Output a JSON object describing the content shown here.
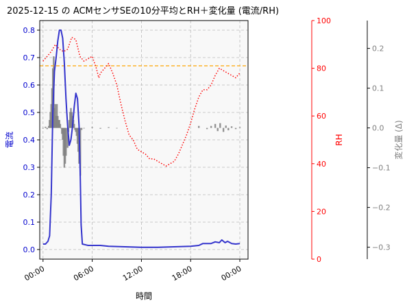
{
  "chart_data": {
    "type": "line",
    "title": "2025-12-15 の ACMセンサSEの10分平均とRH＋変化量 (電流/RH)",
    "xlabel": "時間",
    "x_ticks": [
      "00:00",
      "06:00",
      "12:00",
      "18:00",
      "00:00"
    ],
    "x_range_hours": [
      -0.4,
      25
    ],
    "grid": true,
    "threshold_line": {
      "value": 0.67,
      "axis": "left",
      "color": "#ffa500"
    },
    "axes": {
      "left": {
        "label": "電流",
        "ylim": [
          -0.035,
          0.835
        ],
        "ticks": [
          0.0,
          0.1,
          0.2,
          0.3,
          0.4,
          0.5,
          0.6,
          0.7,
          0.8
        ],
        "color": "#0000cd"
      },
      "rh": {
        "label": "RH",
        "ylim": [
          0,
          100
        ],
        "ticks": [
          0,
          20,
          40,
          60,
          80,
          100
        ],
        "color": "#ff0000"
      },
      "delta": {
        "label": "変化量 (Δ)",
        "ylim": [
          -0.33,
          0.27
        ],
        "ticks": [
          -0.3,
          -0.2,
          -0.1,
          0.0,
          0.1,
          0.2
        ],
        "color": "#808080"
      }
    },
    "series": [
      {
        "axis": "left",
        "style": "solid",
        "color": "#3333cc",
        "points": [
          [
            0.0,
            0.02
          ],
          [
            0.3,
            0.02
          ],
          [
            0.6,
            0.03
          ],
          [
            0.8,
            0.05
          ],
          [
            1.0,
            0.2
          ],
          [
            1.2,
            0.5
          ],
          [
            1.4,
            0.65
          ],
          [
            1.6,
            0.7
          ],
          [
            1.8,
            0.76
          ],
          [
            2.0,
            0.8
          ],
          [
            2.2,
            0.8
          ],
          [
            2.4,
            0.77
          ],
          [
            2.6,
            0.68
          ],
          [
            2.8,
            0.55
          ],
          [
            3.0,
            0.45
          ],
          [
            3.2,
            0.38
          ],
          [
            3.4,
            0.4
          ],
          [
            3.6,
            0.45
          ],
          [
            3.8,
            0.52
          ],
          [
            4.0,
            0.57
          ],
          [
            4.2,
            0.55
          ],
          [
            4.4,
            0.45
          ],
          [
            4.55,
            0.26
          ],
          [
            4.65,
            0.09
          ],
          [
            4.8,
            0.02
          ],
          [
            5.5,
            0.015
          ],
          [
            7.0,
            0.015
          ],
          [
            8.0,
            0.012
          ],
          [
            10.0,
            0.01
          ],
          [
            12.0,
            0.008
          ],
          [
            14.0,
            0.008
          ],
          [
            16.0,
            0.01
          ],
          [
            18.0,
            0.012
          ],
          [
            19.0,
            0.015
          ],
          [
            19.5,
            0.022
          ],
          [
            20.5,
            0.022
          ],
          [
            21.0,
            0.028
          ],
          [
            21.5,
            0.025
          ],
          [
            21.8,
            0.035
          ],
          [
            22.2,
            0.025
          ],
          [
            22.5,
            0.03
          ],
          [
            23.0,
            0.022
          ],
          [
            23.5,
            0.02
          ],
          [
            24.0,
            0.022
          ]
        ]
      },
      {
        "axis": "rh",
        "style": "dotted",
        "color": "#ff0000",
        "points": [
          [
            0.0,
            83
          ],
          [
            0.5,
            85
          ],
          [
            1.0,
            87
          ],
          [
            1.5,
            90
          ],
          [
            2.0,
            88
          ],
          [
            2.5,
            87
          ],
          [
            3.0,
            88
          ],
          [
            3.5,
            93
          ],
          [
            4.0,
            92
          ],
          [
            4.5,
            85
          ],
          [
            5.0,
            83
          ],
          [
            5.5,
            84
          ],
          [
            6.0,
            85
          ],
          [
            6.5,
            80
          ],
          [
            6.8,
            76
          ],
          [
            7.0,
            78
          ],
          [
            7.5,
            80
          ],
          [
            8.0,
            82
          ],
          [
            8.5,
            78
          ],
          [
            9.0,
            73
          ],
          [
            9.5,
            65
          ],
          [
            10.0,
            58
          ],
          [
            10.5,
            52
          ],
          [
            11.0,
            50
          ],
          [
            11.5,
            46
          ],
          [
            12.0,
            45
          ],
          [
            12.5,
            44
          ],
          [
            13.0,
            42
          ],
          [
            13.5,
            42
          ],
          [
            14.0,
            41
          ],
          [
            14.5,
            40
          ],
          [
            15.0,
            39
          ],
          [
            15.5,
            40
          ],
          [
            16.0,
            41
          ],
          [
            16.5,
            44
          ],
          [
            17.0,
            48
          ],
          [
            17.5,
            52
          ],
          [
            18.0,
            57
          ],
          [
            18.5,
            63
          ],
          [
            19.0,
            68
          ],
          [
            19.5,
            71
          ],
          [
            20.0,
            71
          ],
          [
            20.5,
            73
          ],
          [
            21.0,
            77
          ],
          [
            21.5,
            80
          ],
          [
            22.0,
            79
          ],
          [
            22.5,
            78
          ],
          [
            23.0,
            77
          ],
          [
            23.5,
            76
          ],
          [
            24.0,
            78
          ]
        ]
      },
      {
        "axis": "delta",
        "style": "bars",
        "color": "#808080",
        "points": [
          [
            0.0,
            0.0
          ],
          [
            0.3,
            0.003
          ],
          [
            0.5,
            -0.003
          ],
          [
            0.7,
            0.005
          ],
          [
            0.8,
            0.02
          ],
          [
            0.9,
            0.04
          ],
          [
            1.0,
            0.06
          ],
          [
            1.1,
            0.1
          ],
          [
            1.2,
            0.15
          ],
          [
            1.3,
            0.18
          ],
          [
            1.4,
            0.05
          ],
          [
            1.5,
            0.06
          ],
          [
            1.6,
            0.03
          ],
          [
            1.7,
            0.06
          ],
          [
            1.8,
            0.03
          ],
          [
            1.9,
            0.02
          ],
          [
            2.0,
            0.02
          ],
          [
            2.1,
            0.01
          ],
          [
            2.2,
            0.0
          ],
          [
            2.3,
            -0.015
          ],
          [
            2.4,
            -0.03
          ],
          [
            2.5,
            -0.07
          ],
          [
            2.6,
            -0.1
          ],
          [
            2.7,
            -0.09
          ],
          [
            2.8,
            -0.07
          ],
          [
            3.0,
            -0.05
          ],
          [
            3.1,
            -0.01
          ],
          [
            3.2,
            0.02
          ],
          [
            3.3,
            0.04
          ],
          [
            3.4,
            0.05
          ],
          [
            3.5,
            0.04
          ],
          [
            3.6,
            0.03
          ],
          [
            3.7,
            0.02
          ],
          [
            3.8,
            0.01
          ],
          [
            3.9,
            -0.005
          ],
          [
            4.0,
            -0.01
          ],
          [
            4.1,
            -0.02
          ],
          [
            4.2,
            -0.04
          ],
          [
            4.3,
            -0.06
          ],
          [
            4.4,
            -0.09
          ],
          [
            4.55,
            -0.12
          ],
          [
            4.7,
            -0.005
          ],
          [
            5.0,
            0.0
          ],
          [
            6.0,
            0.002
          ],
          [
            7.0,
            -0.002
          ],
          [
            8.0,
            0.002
          ],
          [
            9.0,
            0.0
          ],
          [
            19.0,
            0.005
          ],
          [
            20.0,
            -0.003
          ],
          [
            20.5,
            0.005
          ],
          [
            21.0,
            0.01
          ],
          [
            21.3,
            -0.008
          ],
          [
            21.6,
            0.012
          ],
          [
            22.0,
            -0.01
          ],
          [
            22.3,
            0.006
          ],
          [
            22.6,
            -0.006
          ],
          [
            23.0,
            0.004
          ],
          [
            23.5,
            -0.003
          ],
          [
            24.0,
            0.002
          ]
        ]
      }
    ]
  }
}
